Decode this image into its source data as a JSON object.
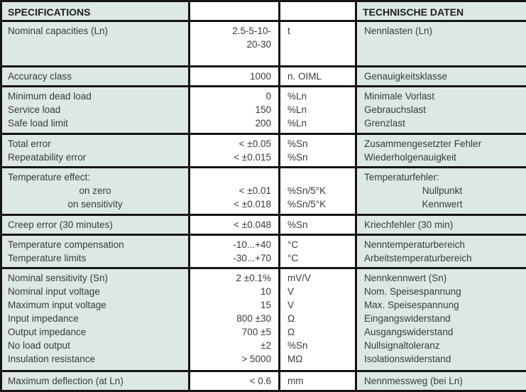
{
  "header": {
    "specifications": "SPECIFICATIONS",
    "technische_daten": "TECHNISCHE DATEN"
  },
  "colors": {
    "cell_background": "#dce8e3",
    "border": "#151515",
    "text": "#3a3a3a"
  },
  "groups": [
    {
      "tall": true,
      "rows": [
        {
          "spec": "Nominal capacities (Ln)",
          "value": "2.5-5-10-",
          "unit": "t",
          "de": "Nennlasten (Ln)"
        },
        {
          "spec": "",
          "value": "20-30",
          "unit": "",
          "de": ""
        }
      ]
    },
    {
      "rows": [
        {
          "spec": "Accuracy class",
          "value": "1000",
          "unit": "n. OIML",
          "de": "Genauigkeitsklasse"
        }
      ]
    },
    {
      "rows": [
        {
          "spec": "Minimum dead load",
          "value": "0",
          "unit": "%Ln",
          "de": "Minimale Vorlast"
        },
        {
          "spec": "Service load",
          "value": "150",
          "unit": "%Ln",
          "de": "Gebrauchslast"
        },
        {
          "spec": "Safe load limit",
          "value": "200",
          "unit": "%Ln",
          "de": "Grenzlast"
        }
      ]
    },
    {
      "rows": [
        {
          "spec": "Total error",
          "value": "< ±0.05",
          "unit": "%Sn",
          "de": "Zusammengesetzter Fehler"
        },
        {
          "spec": "Repeatability error",
          "value": "< ±0.015",
          "unit": "%Sn",
          "de": "Wiederholgenauigkeit"
        }
      ]
    },
    {
      "rows": [
        {
          "spec": "Temperature effect:",
          "value": "",
          "unit": "",
          "de": "Temperaturfehler:"
        },
        {
          "spec": "on zero",
          "value": "< ±0.01",
          "unit": "%Sn/5°K",
          "de": "Nullpunkt",
          "align": "center"
        },
        {
          "spec": "on sensitivity",
          "value": "< ±0.018",
          "unit": "%Sn/5°K",
          "de": "Kennwert",
          "align": "center"
        }
      ]
    },
    {
      "rows": [
        {
          "spec": "Creep error (30 minutes)",
          "value": "< ±0.048",
          "unit": "%Sn",
          "de": "Kriechfehler (30 min)"
        }
      ]
    },
    {
      "rows": [
        {
          "spec": "Temperature compensation",
          "value": "-10...+40",
          "unit": "°C",
          "de": "Nenntemperaturbereich"
        },
        {
          "spec": "Temperature limits",
          "value": "-30...+70",
          "unit": "°C",
          "de": "Arbeitstemperaturbereich"
        }
      ]
    },
    {
      "rows": [
        {
          "spec": "Nominal sensitivity (Sn)",
          "value": "2 ±0.1%",
          "unit": "mV/V",
          "de": "Nennkennwert (Sn)"
        },
        {
          "spec": "Nominal input voltage",
          "value": "10",
          "unit": "V",
          "de": "Nom. Speisespannung"
        },
        {
          "spec": "Maximum input voltage",
          "value": "15",
          "unit": "V",
          "de": "Max. Speisespannung"
        },
        {
          "spec": "Input impedance",
          "value": "800 ±30",
          "unit": "Ω",
          "de": "Eingangswiderstand"
        },
        {
          "spec": "Output impedance",
          "value": "700 ±5",
          "unit": "Ω",
          "de": "Ausgangswiderstand"
        },
        {
          "spec": "No load output",
          "value": "±2",
          "unit": "%Sn",
          "de": "Nullsignaltoleranz"
        },
        {
          "spec": "Insulation resistance",
          "value": "> 5000",
          "unit": "MΩ",
          "de": "Isolationswiderstand"
        }
      ]
    },
    {
      "rows": [
        {
          "spec": "Maximum deflection (at Ln)",
          "value": "< 0.6",
          "unit": "mm",
          "de": "Nennmessweg (bei Ln)"
        }
      ]
    }
  ]
}
